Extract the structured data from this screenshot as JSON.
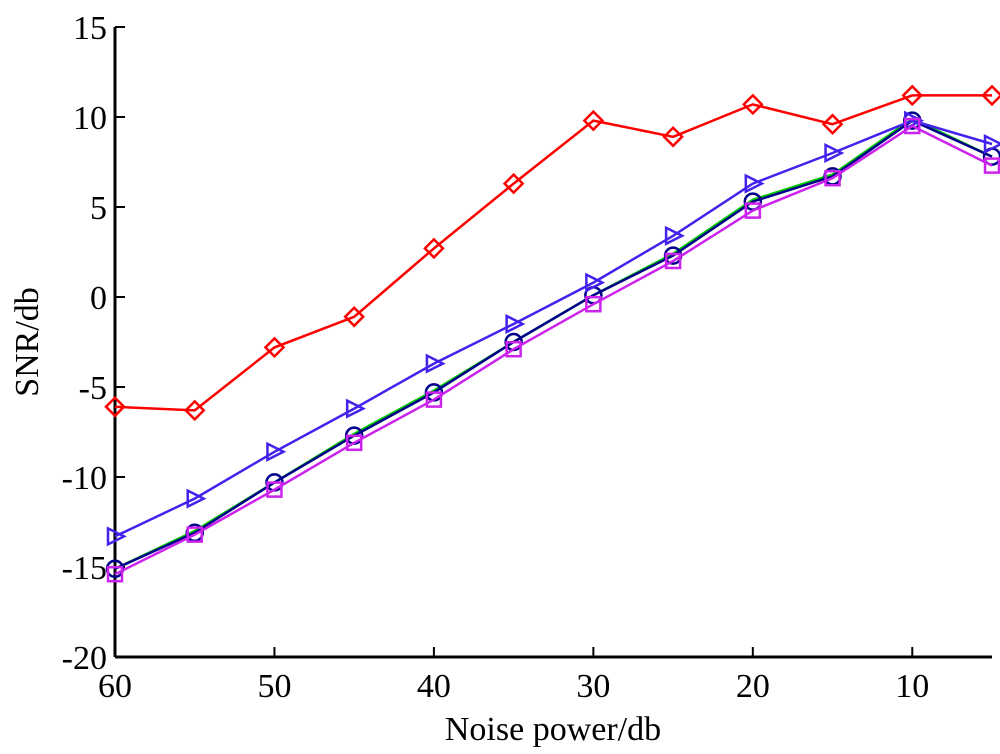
{
  "chart_data": {
    "type": "line",
    "title": "",
    "xlabel": "Noise power/db",
    "ylabel": "SNR/db",
    "x": [
      60,
      55,
      50,
      45,
      40,
      35,
      30,
      25,
      20,
      15,
      10,
      5
    ],
    "xlim": [
      60,
      5
    ],
    "ylim": [
      -20,
      15
    ],
    "xticks": [
      60,
      50,
      40,
      30,
      20,
      10
    ],
    "yticks": [
      15,
      10,
      5,
      0,
      -5,
      -10,
      -15,
      -20
    ],
    "grid": false,
    "series": [
      {
        "color": "#ff0000",
        "marker": "diamond",
        "values": [
          -6.1,
          -6.3,
          -2.8,
          -1.1,
          2.7,
          6.3,
          9.8,
          8.9,
          10.7,
          9.6,
          11.2,
          11.2
        ]
      },
      {
        "color": "#00cc00",
        "marker": "none",
        "values": [
          -15.1,
          -13.0,
          -10.3,
          -7.6,
          -5.2,
          -2.5,
          0.1,
          2.4,
          5.4,
          6.8,
          9.9,
          7.8
        ]
      },
      {
        "color": "#00008b",
        "marker": "circle",
        "values": [
          -15.1,
          -13.1,
          -10.3,
          -7.7,
          -5.3,
          -2.5,
          0.1,
          2.3,
          5.3,
          6.7,
          9.8,
          7.8
        ]
      },
      {
        "color": "#4422ee",
        "marker": "triangle-right",
        "values": [
          -13.3,
          -11.2,
          -8.6,
          -6.2,
          -3.7,
          -1.5,
          0.8,
          3.4,
          6.3,
          8.0,
          9.8,
          8.5
        ]
      },
      {
        "color": "#cc22ee",
        "marker": "square",
        "values": [
          -15.4,
          -13.2,
          -10.7,
          -8.1,
          -5.7,
          -2.9,
          -0.4,
          2.0,
          4.8,
          6.6,
          9.5,
          7.3
        ]
      }
    ]
  }
}
